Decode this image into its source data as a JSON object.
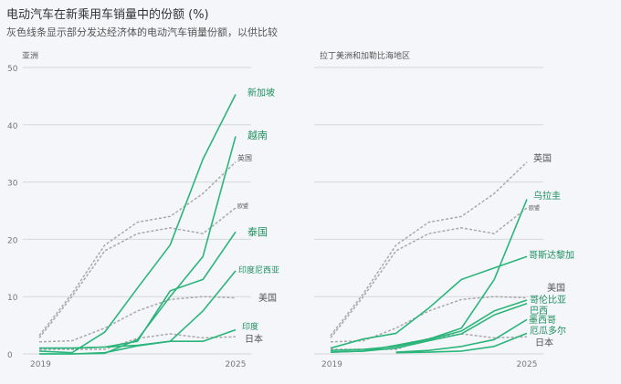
{
  "title": "电动汽车在新乘用车销量中的份额 (%)",
  "subtitle": "灰色线条显示部分发达经济体的电动汽车销量份额，以供比较",
  "colors": {
    "highlight": "#2bb57a",
    "highlight_label": "#1e8f5e",
    "comparison": "#a9a9ad",
    "comparison_label": "#555555",
    "grid": "#d6d7db"
  },
  "chart_data": [
    {
      "type": "line",
      "panel_title": "亚洲",
      "x": [
        2019,
        2020,
        2021,
        2022,
        2023,
        2024,
        2025
      ],
      "x_tick_labels": [
        "2019",
        "2025"
      ],
      "ylim": [
        0,
        50
      ],
      "y_ticks": [
        0,
        10,
        20,
        30,
        40,
        50
      ],
      "y_tick_labels": [
        "0",
        "10",
        "20",
        "30",
        "40",
        "50"
      ],
      "grid": true,
      "series": [
        {
          "name": "新加坡",
          "style": "highlight",
          "values": [
            0.5,
            0.2,
            3.8,
            11.5,
            19,
            34,
            45.3
          ]
        },
        {
          "name": "越南",
          "style": "highlight",
          "values": [
            0,
            0,
            0.1,
            2.5,
            10,
            17,
            38
          ]
        },
        {
          "name": "泰国",
          "style": "highlight",
          "values": [
            1,
            1,
            1.2,
            2.2,
            11,
            13,
            21.3
          ]
        },
        {
          "name": "印度尼西亚",
          "style": "highlight",
          "values": [
            0,
            0,
            0.2,
            1.4,
            2.2,
            7.5,
            14.5
          ]
        },
        {
          "name": "印度",
          "style": "highlight",
          "values": [
            1,
            1,
            1.2,
            1.5,
            2.2,
            2.2,
            4.2
          ]
        },
        {
          "name": "英国",
          "style": "comparison",
          "values": [
            3.2,
            10.5,
            19,
            23,
            24,
            28,
            33.5
          ]
        },
        {
          "name": "欧盟",
          "style": "comparison",
          "values": [
            2.8,
            10,
            18,
            21,
            22,
            21,
            25.5
          ]
        },
        {
          "name": "美国",
          "style": "comparison",
          "values": [
            2.1,
            2.3,
            4.5,
            7.5,
            9.5,
            10,
            9.8
          ]
        },
        {
          "name": "日本",
          "style": "comparison",
          "values": [
            0.8,
            0.8,
            0.8,
            2.7,
            3.5,
            2.8,
            3
          ]
        }
      ]
    },
    {
      "type": "line",
      "panel_title": "拉丁美洲和加勒比海地区",
      "x": [
        2019,
        2020,
        2021,
        2022,
        2023,
        2024,
        2025
      ],
      "x_tick_labels": [
        "2019",
        "2025"
      ],
      "ylim": [
        0,
        50
      ],
      "y_ticks": [
        0,
        10,
        20,
        30,
        40,
        50
      ],
      "grid": true,
      "series": [
        {
          "name": "英国",
          "style": "comparison",
          "values": [
            3.2,
            10.5,
            19,
            23,
            24,
            28,
            33.5
          ]
        },
        {
          "name": "乌拉圭",
          "style": "highlight",
          "values": [
            0.3,
            0.5,
            1.5,
            2.6,
            4.5,
            13,
            27
          ]
        },
        {
          "name": "欧盟",
          "style": "comparison",
          "values": [
            2.8,
            10,
            18,
            21,
            22,
            21,
            25.5
          ]
        },
        {
          "name": "哥斯达黎加",
          "style": "highlight",
          "values": [
            1,
            2.6,
            3.6,
            8,
            13,
            15,
            17
          ]
        },
        {
          "name": "美国",
          "style": "comparison",
          "values": [
            2.1,
            2.3,
            4.5,
            7.5,
            9.5,
            10,
            9.8
          ]
        },
        {
          "name": "哥伦比亚",
          "style": "highlight",
          "values": [
            0.6,
            0.8,
            1.3,
            2.5,
            4,
            7.5,
            9.4
          ]
        },
        {
          "name": "巴西",
          "style": "highlight",
          "values": [
            0.3,
            0.5,
            1,
            2.3,
            3.5,
            6.8,
            8.8
          ]
        },
        {
          "name": "墨西哥",
          "style": "highlight",
          "values": [
            null,
            null,
            0.3,
            0.6,
            1.3,
            2.5,
            6
          ]
        },
        {
          "name": "厄瓜多尔",
          "style": "highlight",
          "values": [
            null,
            null,
            0.2,
            0.3,
            0.5,
            1.3,
            3.6
          ]
        },
        {
          "name": "日本",
          "style": "comparison",
          "values": [
            0.8,
            0.8,
            0.8,
            2.7,
            3.5,
            2.8,
            3
          ]
        }
      ]
    }
  ]
}
